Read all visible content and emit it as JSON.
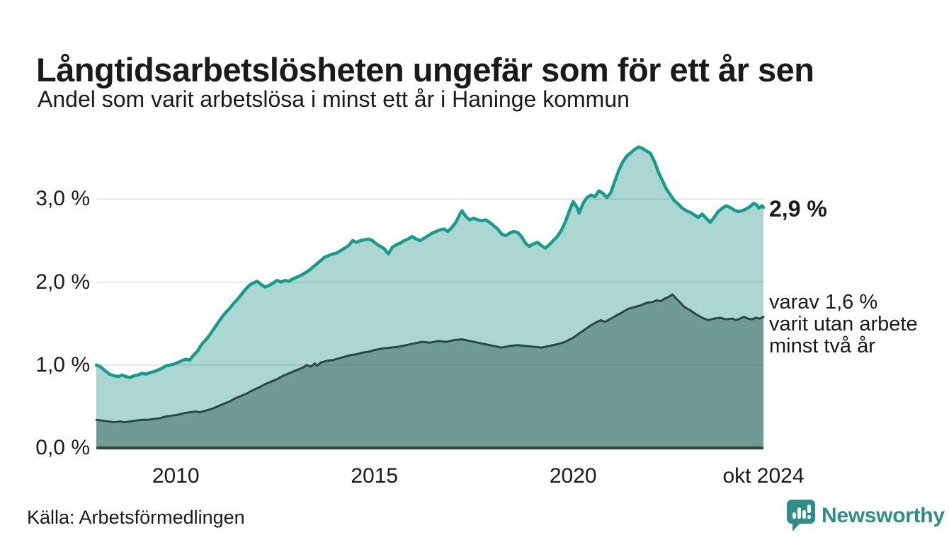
{
  "colors": {
    "teal_line": "#179b8b",
    "area_light": "#abd7d0",
    "area_dark": "#6f9b94",
    "dark_line": "#2b4743",
    "axis_line": "#35433f",
    "gridline": "rgba(55,80,77,0.14)",
    "text": "#1a1a1a",
    "brand": "#2f8e87"
  },
  "footer": {
    "source": "Källa: Arbetsförmedlingen",
    "brand": "Newsworthy"
  },
  "chart_data": {
    "type": "area",
    "title": "Långtidsarbetslösheten ungefär som för ett år sen",
    "subtitle": "Andel som varit arbetslösa i minst ett år i Haninge kommun",
    "unit": "%",
    "grid": true,
    "legend": "end-of-line annotations",
    "x_range": [
      2008,
      2024.79
    ],
    "y_range": [
      0,
      3.78
    ],
    "y_axis": {
      "ticks": [
        {
          "label": "0,0 %",
          "value": 0
        },
        {
          "label": "1,0 %",
          "value": 1
        },
        {
          "label": "2,0 %",
          "value": 2
        },
        {
          "label": "3,0 %",
          "value": 3
        }
      ]
    },
    "x_axis": {
      "ticks": [
        {
          "label": "2010",
          "t": 2010
        },
        {
          "label": "2015",
          "t": 2015
        },
        {
          "label": "2020",
          "t": 2020
        },
        {
          "label": "okt 2024",
          "t": 2024.79
        }
      ]
    },
    "series": [
      {
        "id": "unemployed-min-one-year",
        "end_label": "2,9 %",
        "end_value": 2.9,
        "points": [
          [
            2008.0,
            1.0
          ],
          [
            2008.1,
            0.98
          ],
          [
            2008.2,
            0.94
          ],
          [
            2008.33,
            0.89
          ],
          [
            2008.45,
            0.87
          ],
          [
            2008.55,
            0.86
          ],
          [
            2008.65,
            0.88
          ],
          [
            2008.75,
            0.86
          ],
          [
            2008.85,
            0.85
          ],
          [
            2008.95,
            0.87
          ],
          [
            2009.05,
            0.88
          ],
          [
            2009.15,
            0.9
          ],
          [
            2009.25,
            0.89
          ],
          [
            2009.35,
            0.91
          ],
          [
            2009.45,
            0.92
          ],
          [
            2009.55,
            0.94
          ],
          [
            2009.65,
            0.96
          ],
          [
            2009.75,
            0.99
          ],
          [
            2009.85,
            1.0
          ],
          [
            2009.95,
            1.01
          ],
          [
            2010.05,
            1.03
          ],
          [
            2010.15,
            1.05
          ],
          [
            2010.25,
            1.07
          ],
          [
            2010.35,
            1.06
          ],
          [
            2010.45,
            1.12
          ],
          [
            2010.55,
            1.17
          ],
          [
            2010.65,
            1.25
          ],
          [
            2010.75,
            1.3
          ],
          [
            2010.85,
            1.36
          ],
          [
            2010.95,
            1.43
          ],
          [
            2011.05,
            1.5
          ],
          [
            2011.15,
            1.57
          ],
          [
            2011.25,
            1.63
          ],
          [
            2011.35,
            1.68
          ],
          [
            2011.45,
            1.74
          ],
          [
            2011.55,
            1.79
          ],
          [
            2011.65,
            1.85
          ],
          [
            2011.75,
            1.91
          ],
          [
            2011.85,
            1.96
          ],
          [
            2011.95,
            1.99
          ],
          [
            2012.05,
            2.01
          ],
          [
            2012.15,
            1.97
          ],
          [
            2012.25,
            1.94
          ],
          [
            2012.35,
            1.96
          ],
          [
            2012.45,
            1.99
          ],
          [
            2012.55,
            2.02
          ],
          [
            2012.65,
            2.0
          ],
          [
            2012.75,
            2.02
          ],
          [
            2012.85,
            2.01
          ],
          [
            2012.95,
            2.04
          ],
          [
            2013.05,
            2.06
          ],
          [
            2013.15,
            2.08
          ],
          [
            2013.25,
            2.11
          ],
          [
            2013.35,
            2.14
          ],
          [
            2013.45,
            2.18
          ],
          [
            2013.55,
            2.22
          ],
          [
            2013.65,
            2.26
          ],
          [
            2013.75,
            2.3
          ],
          [
            2013.85,
            2.32
          ],
          [
            2013.95,
            2.34
          ],
          [
            2014.05,
            2.35
          ],
          [
            2014.15,
            2.38
          ],
          [
            2014.25,
            2.41
          ],
          [
            2014.35,
            2.44
          ],
          [
            2014.45,
            2.5
          ],
          [
            2014.55,
            2.48
          ],
          [
            2014.65,
            2.5
          ],
          [
            2014.75,
            2.51
          ],
          [
            2014.85,
            2.52
          ],
          [
            2014.95,
            2.5
          ],
          [
            2015.05,
            2.46
          ],
          [
            2015.15,
            2.43
          ],
          [
            2015.25,
            2.4
          ],
          [
            2015.35,
            2.34
          ],
          [
            2015.45,
            2.42
          ],
          [
            2015.55,
            2.45
          ],
          [
            2015.65,
            2.47
          ],
          [
            2015.75,
            2.5
          ],
          [
            2015.85,
            2.52
          ],
          [
            2015.95,
            2.55
          ],
          [
            2016.05,
            2.52
          ],
          [
            2016.15,
            2.5
          ],
          [
            2016.25,
            2.53
          ],
          [
            2016.35,
            2.56
          ],
          [
            2016.45,
            2.59
          ],
          [
            2016.55,
            2.61
          ],
          [
            2016.65,
            2.63
          ],
          [
            2016.75,
            2.64
          ],
          [
            2016.85,
            2.61
          ],
          [
            2016.95,
            2.66
          ],
          [
            2017.05,
            2.72
          ],
          [
            2017.15,
            2.82
          ],
          [
            2017.2,
            2.86
          ],
          [
            2017.3,
            2.79
          ],
          [
            2017.4,
            2.75
          ],
          [
            2017.5,
            2.77
          ],
          [
            2017.6,
            2.75
          ],
          [
            2017.7,
            2.74
          ],
          [
            2017.8,
            2.75
          ],
          [
            2017.9,
            2.72
          ],
          [
            2018.0,
            2.68
          ],
          [
            2018.1,
            2.64
          ],
          [
            2018.2,
            2.58
          ],
          [
            2018.3,
            2.56
          ],
          [
            2018.4,
            2.59
          ],
          [
            2018.5,
            2.61
          ],
          [
            2018.6,
            2.6
          ],
          [
            2018.7,
            2.55
          ],
          [
            2018.8,
            2.47
          ],
          [
            2018.9,
            2.43
          ],
          [
            2019.0,
            2.46
          ],
          [
            2019.1,
            2.48
          ],
          [
            2019.2,
            2.44
          ],
          [
            2019.3,
            2.41
          ],
          [
            2019.4,
            2.45
          ],
          [
            2019.5,
            2.5
          ],
          [
            2019.6,
            2.55
          ],
          [
            2019.7,
            2.62
          ],
          [
            2019.8,
            2.72
          ],
          [
            2019.9,
            2.85
          ],
          [
            2020.0,
            2.97
          ],
          [
            2020.1,
            2.9
          ],
          [
            2020.15,
            2.83
          ],
          [
            2020.25,
            2.95
          ],
          [
            2020.35,
            3.02
          ],
          [
            2020.45,
            3.05
          ],
          [
            2020.55,
            3.03
          ],
          [
            2020.65,
            3.1
          ],
          [
            2020.75,
            3.07
          ],
          [
            2020.85,
            3.02
          ],
          [
            2020.95,
            3.08
          ],
          [
            2021.05,
            3.22
          ],
          [
            2021.15,
            3.35
          ],
          [
            2021.25,
            3.45
          ],
          [
            2021.35,
            3.52
          ],
          [
            2021.45,
            3.56
          ],
          [
            2021.55,
            3.6
          ],
          [
            2021.65,
            3.63
          ],
          [
            2021.75,
            3.61
          ],
          [
            2021.85,
            3.58
          ],
          [
            2021.95,
            3.55
          ],
          [
            2022.05,
            3.45
          ],
          [
            2022.15,
            3.32
          ],
          [
            2022.25,
            3.22
          ],
          [
            2022.35,
            3.12
          ],
          [
            2022.45,
            3.05
          ],
          [
            2022.55,
            2.98
          ],
          [
            2022.65,
            2.94
          ],
          [
            2022.75,
            2.89
          ],
          [
            2022.85,
            2.86
          ],
          [
            2022.95,
            2.84
          ],
          [
            2023.05,
            2.81
          ],
          [
            2023.15,
            2.78
          ],
          [
            2023.25,
            2.82
          ],
          [
            2023.35,
            2.77
          ],
          [
            2023.45,
            2.72
          ],
          [
            2023.55,
            2.78
          ],
          [
            2023.65,
            2.85
          ],
          [
            2023.75,
            2.89
          ],
          [
            2023.85,
            2.92
          ],
          [
            2023.95,
            2.9
          ],
          [
            2024.05,
            2.87
          ],
          [
            2024.15,
            2.85
          ],
          [
            2024.25,
            2.86
          ],
          [
            2024.35,
            2.88
          ],
          [
            2024.45,
            2.91
          ],
          [
            2024.55,
            2.95
          ],
          [
            2024.62,
            2.93
          ],
          [
            2024.68,
            2.89
          ],
          [
            2024.75,
            2.92
          ],
          [
            2024.79,
            2.9
          ]
        ]
      },
      {
        "id": "unemployed-min-two-years",
        "end_label_lines": [
          "varav 1,6 %",
          "varit utan arbete",
          "minst två år"
        ],
        "end_value": 1.6,
        "points": [
          [
            2008.0,
            0.34
          ],
          [
            2008.15,
            0.33
          ],
          [
            2008.3,
            0.32
          ],
          [
            2008.45,
            0.31
          ],
          [
            2008.6,
            0.32
          ],
          [
            2008.7,
            0.31
          ],
          [
            2008.85,
            0.32
          ],
          [
            2009.0,
            0.33
          ],
          [
            2009.15,
            0.34
          ],
          [
            2009.3,
            0.34
          ],
          [
            2009.45,
            0.35
          ],
          [
            2009.6,
            0.36
          ],
          [
            2009.75,
            0.38
          ],
          [
            2009.9,
            0.39
          ],
          [
            2010.05,
            0.4
          ],
          [
            2010.2,
            0.42
          ],
          [
            2010.35,
            0.43
          ],
          [
            2010.5,
            0.44
          ],
          [
            2010.6,
            0.43
          ],
          [
            2010.75,
            0.45
          ],
          [
            2010.9,
            0.47
          ],
          [
            2011.05,
            0.5
          ],
          [
            2011.2,
            0.53
          ],
          [
            2011.35,
            0.56
          ],
          [
            2011.5,
            0.6
          ],
          [
            2011.65,
            0.63
          ],
          [
            2011.8,
            0.66
          ],
          [
            2011.95,
            0.7
          ],
          [
            2012.1,
            0.73
          ],
          [
            2012.25,
            0.77
          ],
          [
            2012.4,
            0.8
          ],
          [
            2012.55,
            0.83
          ],
          [
            2012.7,
            0.87
          ],
          [
            2012.85,
            0.9
          ],
          [
            2013.0,
            0.93
          ],
          [
            2013.1,
            0.95
          ],
          [
            2013.2,
            0.97
          ],
          [
            2013.3,
            1.0
          ],
          [
            2013.4,
            0.98
          ],
          [
            2013.5,
            1.02
          ],
          [
            2013.55,
            0.99
          ],
          [
            2013.65,
            1.03
          ],
          [
            2013.8,
            1.05
          ],
          [
            2013.95,
            1.06
          ],
          [
            2014.1,
            1.08
          ],
          [
            2014.25,
            1.1
          ],
          [
            2014.4,
            1.12
          ],
          [
            2014.55,
            1.13
          ],
          [
            2014.7,
            1.15
          ],
          [
            2014.85,
            1.16
          ],
          [
            2015.0,
            1.18
          ],
          [
            2015.2,
            1.2
          ],
          [
            2015.4,
            1.21
          ],
          [
            2015.6,
            1.22
          ],
          [
            2015.8,
            1.24
          ],
          [
            2016.0,
            1.26
          ],
          [
            2016.2,
            1.28
          ],
          [
            2016.4,
            1.27
          ],
          [
            2016.6,
            1.29
          ],
          [
            2016.8,
            1.28
          ],
          [
            2017.0,
            1.3
          ],
          [
            2017.2,
            1.31
          ],
          [
            2017.4,
            1.29
          ],
          [
            2017.6,
            1.27
          ],
          [
            2017.8,
            1.25
          ],
          [
            2018.0,
            1.23
          ],
          [
            2018.2,
            1.21
          ],
          [
            2018.4,
            1.23
          ],
          [
            2018.6,
            1.24
          ],
          [
            2018.8,
            1.23
          ],
          [
            2019.0,
            1.22
          ],
          [
            2019.2,
            1.21
          ],
          [
            2019.4,
            1.23
          ],
          [
            2019.6,
            1.25
          ],
          [
            2019.8,
            1.28
          ],
          [
            2020.0,
            1.33
          ],
          [
            2020.15,
            1.38
          ],
          [
            2020.3,
            1.43
          ],
          [
            2020.45,
            1.48
          ],
          [
            2020.6,
            1.52
          ],
          [
            2020.7,
            1.54
          ],
          [
            2020.8,
            1.52
          ],
          [
            2020.95,
            1.56
          ],
          [
            2021.1,
            1.6
          ],
          [
            2021.25,
            1.64
          ],
          [
            2021.4,
            1.68
          ],
          [
            2021.55,
            1.7
          ],
          [
            2021.7,
            1.72
          ],
          [
            2021.85,
            1.75
          ],
          [
            2022.0,
            1.76
          ],
          [
            2022.1,
            1.78
          ],
          [
            2022.2,
            1.77
          ],
          [
            2022.3,
            1.8
          ],
          [
            2022.4,
            1.82
          ],
          [
            2022.5,
            1.85
          ],
          [
            2022.6,
            1.8
          ],
          [
            2022.7,
            1.75
          ],
          [
            2022.8,
            1.7
          ],
          [
            2022.95,
            1.66
          ],
          [
            2023.1,
            1.61
          ],
          [
            2023.25,
            1.57
          ],
          [
            2023.4,
            1.54
          ],
          [
            2023.55,
            1.56
          ],
          [
            2023.7,
            1.57
          ],
          [
            2023.85,
            1.55
          ],
          [
            2024.0,
            1.56
          ],
          [
            2024.1,
            1.54
          ],
          [
            2024.2,
            1.56
          ],
          [
            2024.3,
            1.58
          ],
          [
            2024.4,
            1.56
          ],
          [
            2024.5,
            1.55
          ],
          [
            2024.6,
            1.57
          ],
          [
            2024.7,
            1.56
          ],
          [
            2024.79,
            1.58
          ]
        ]
      }
    ]
  }
}
